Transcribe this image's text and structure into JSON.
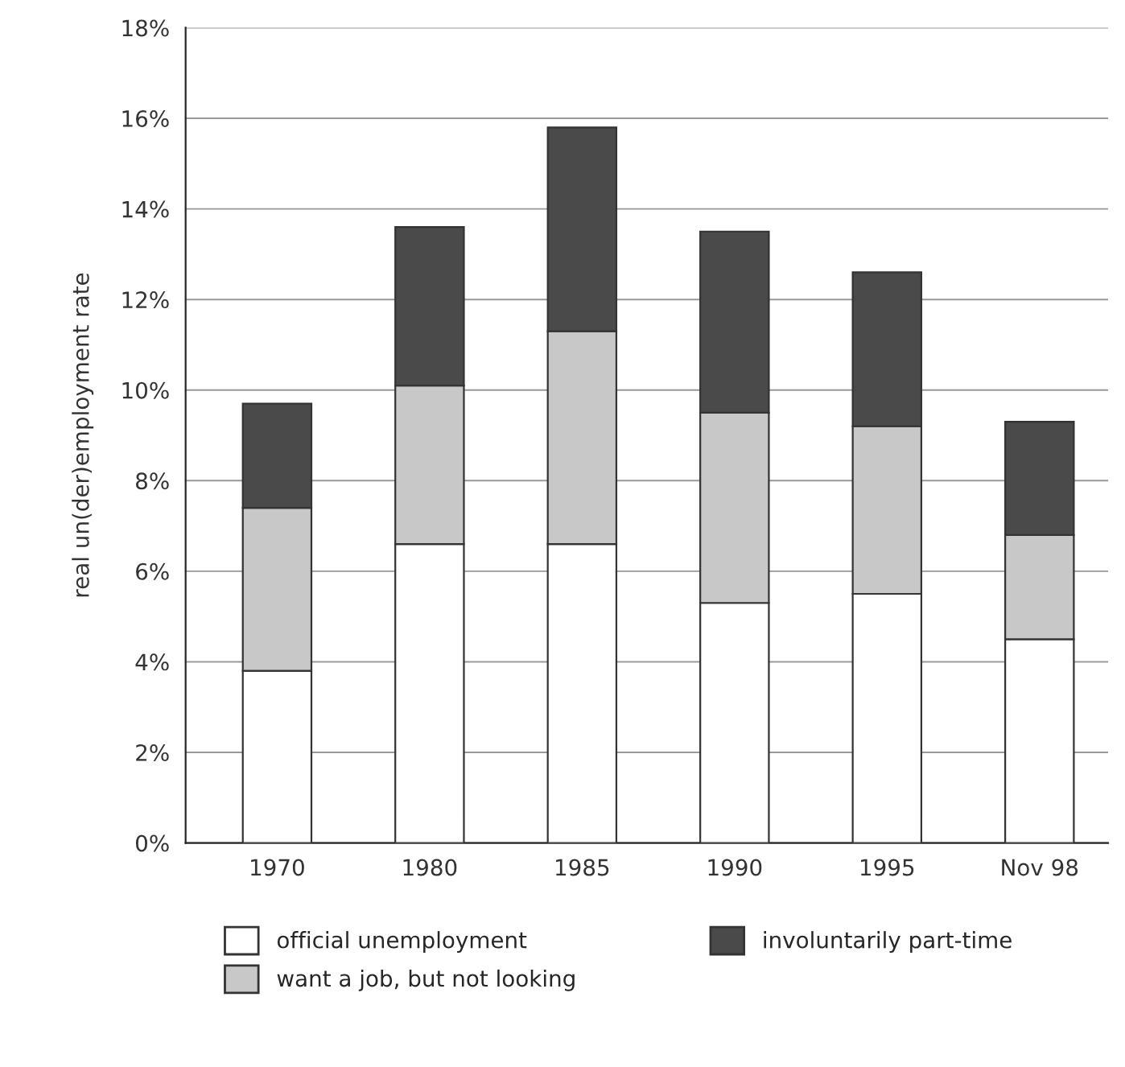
{
  "chart_data": {
    "type": "bar",
    "stacked": true,
    "ylabel": "real un(der)employment rate",
    "categories": [
      "1970",
      "1980",
      "1985",
      "1990",
      "1995",
      "Nov 98"
    ],
    "series": [
      {
        "name": "official unemployment",
        "color": "#ffffff",
        "values": [
          3.8,
          6.6,
          6.6,
          5.3,
          5.5,
          4.5
        ]
      },
      {
        "name": "want a job, but not looking",
        "color": "#c8c8c8",
        "values": [
          3.6,
          3.5,
          4.7,
          4.2,
          3.7,
          2.3
        ]
      },
      {
        "name": "involuntarily part-time",
        "color": "#4a4a4a",
        "values": [
          2.3,
          3.5,
          4.5,
          4.0,
          3.4,
          2.5
        ]
      }
    ],
    "ylim": [
      0,
      18
    ],
    "yticks": [
      {
        "value": 0,
        "label": "0%"
      },
      {
        "value": 2,
        "label": "2%"
      },
      {
        "value": 4,
        "label": "4%"
      },
      {
        "value": 6,
        "label": "6%"
      },
      {
        "value": 8,
        "label": "8%"
      },
      {
        "value": 10,
        "label": "10%"
      },
      {
        "value": 12,
        "label": "12%"
      },
      {
        "value": 14,
        "label": "14%"
      },
      {
        "value": 16,
        "label": "16%"
      },
      {
        "value": 18,
        "label": "18%"
      }
    ],
    "grid": "y",
    "legend": "bottom"
  }
}
